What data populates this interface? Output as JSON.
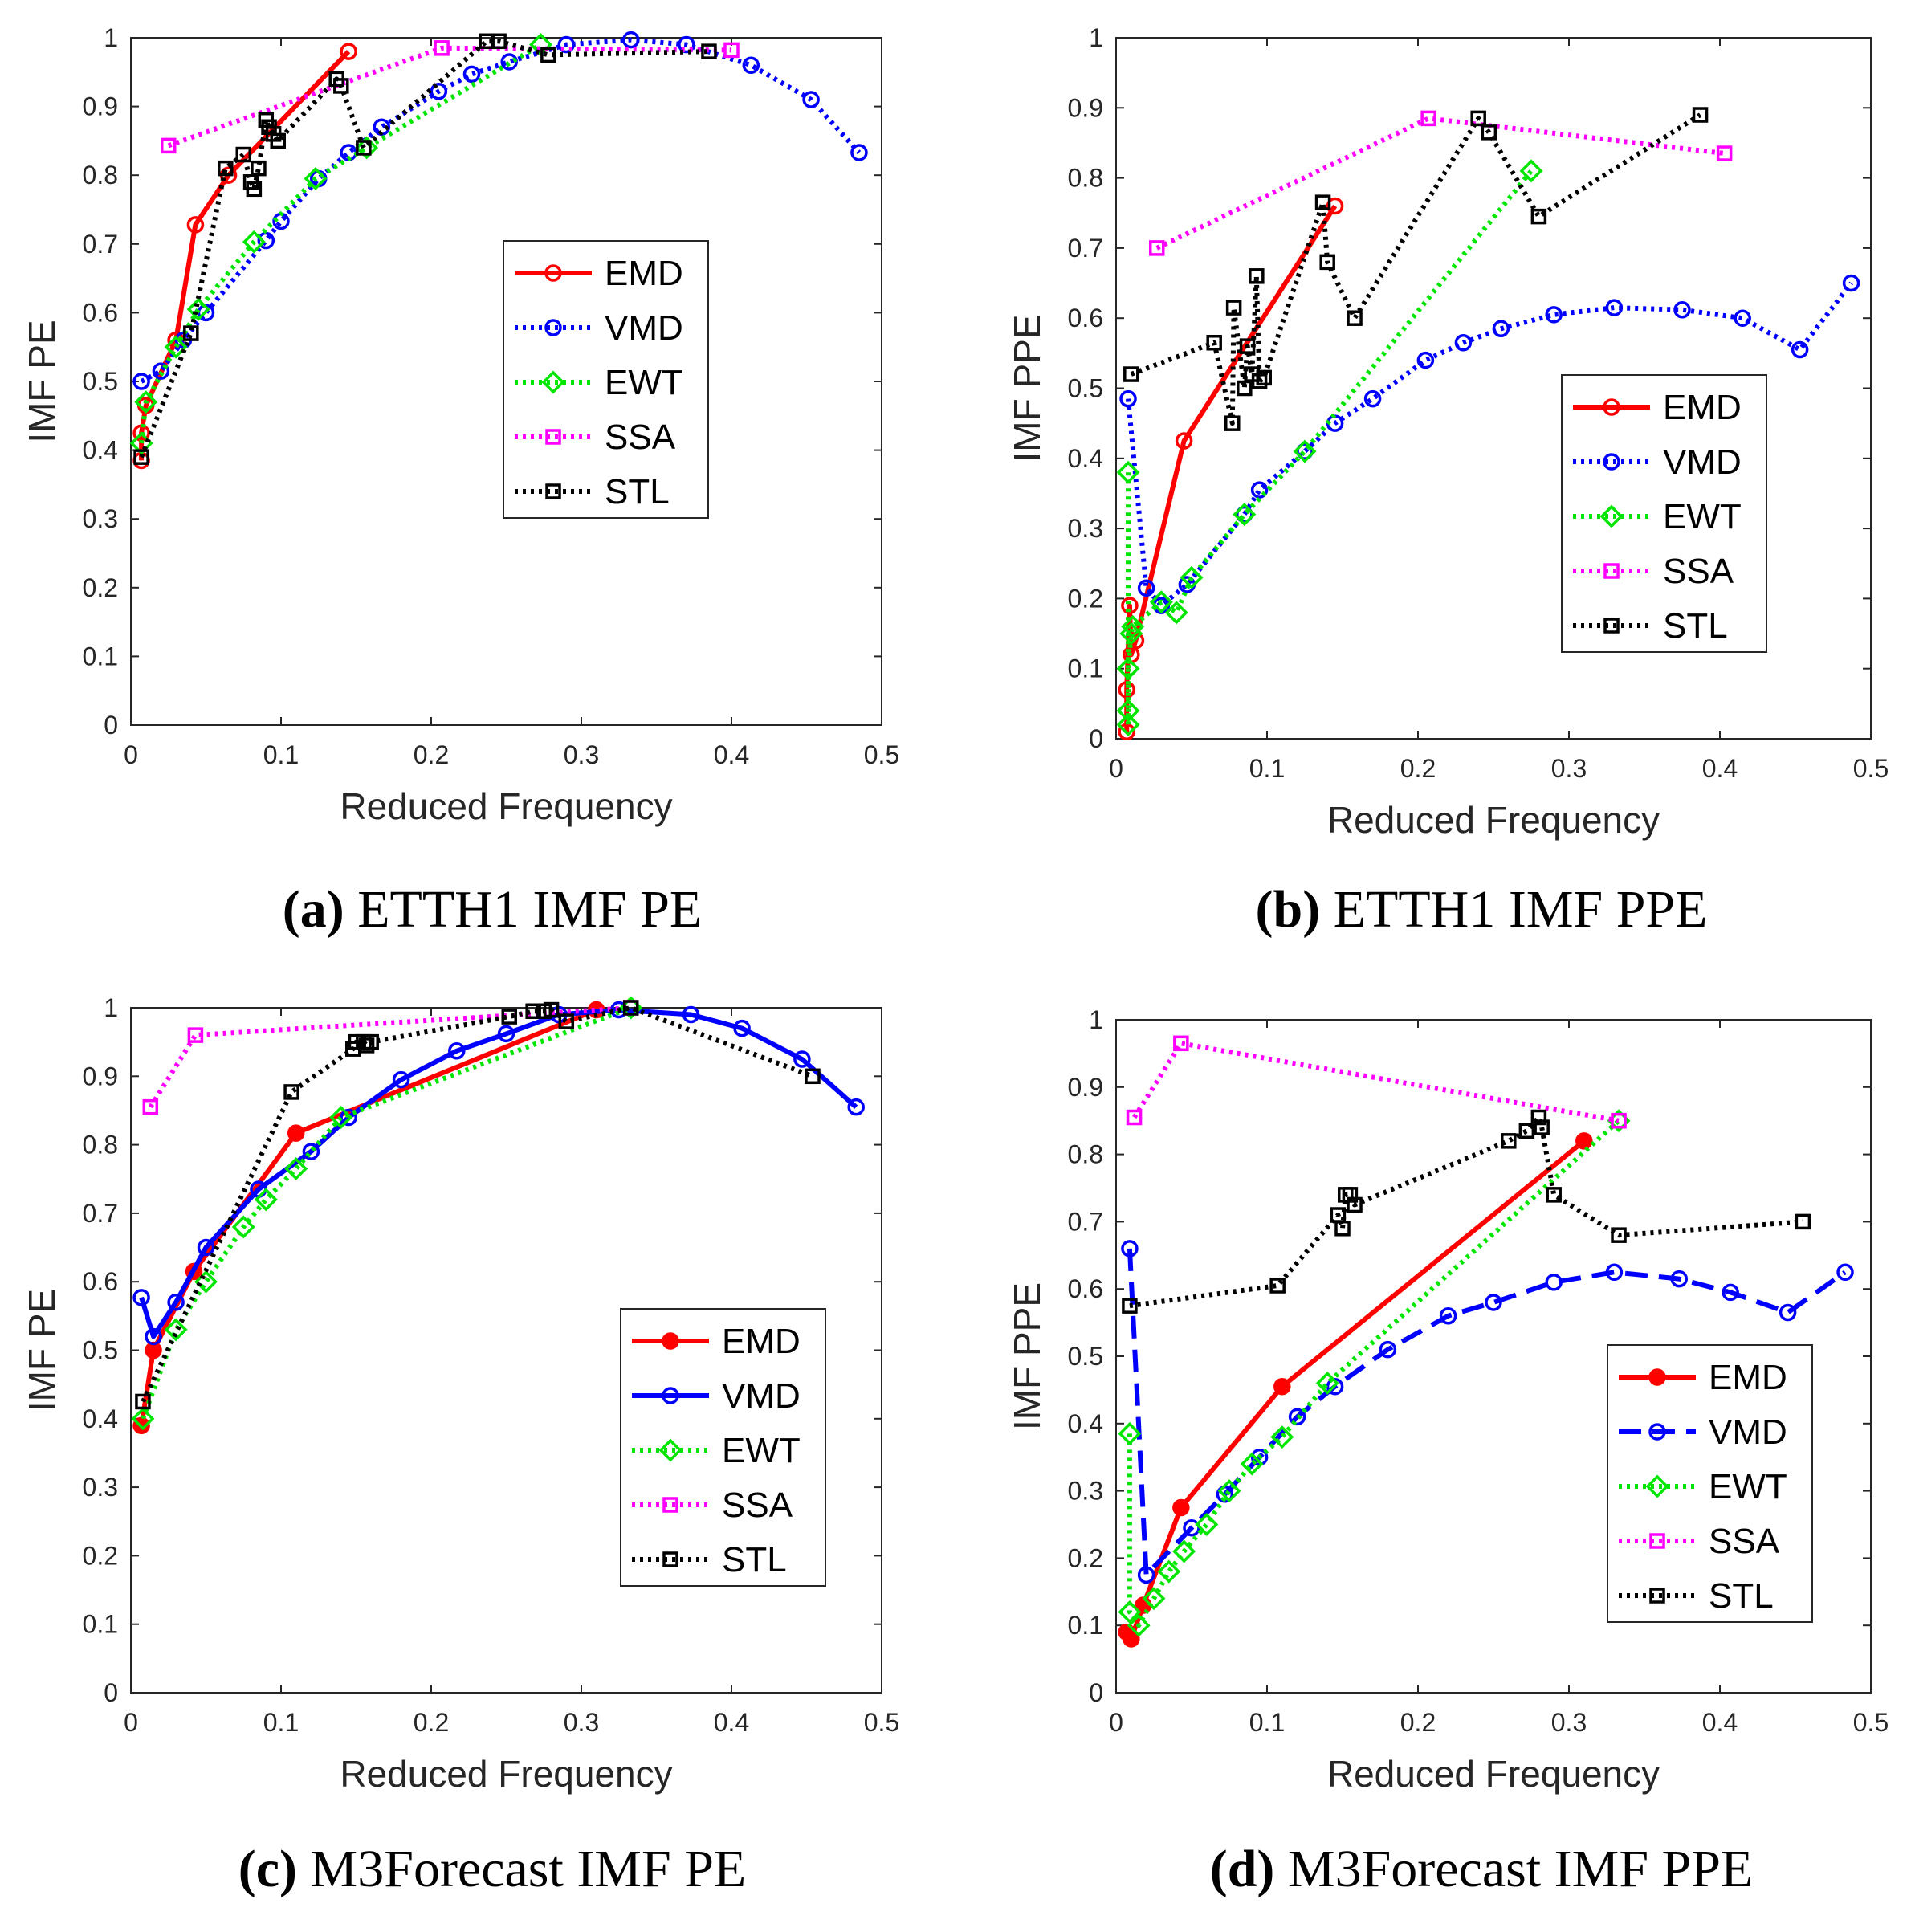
{
  "figure_captions": [
    {
      "letter": "(a)",
      "text": "ETTH1 IMF PE"
    },
    {
      "letter": "(b)",
      "text": "ETTH1 IMF PPE"
    },
    {
      "letter": "(c)",
      "text": "M3Forecast IMF PE"
    },
    {
      "letter": "(d)",
      "text": "M3Forecast IMF PPE"
    }
  ],
  "colors": {
    "EMD": "#ff0000",
    "VMD": "#0000ff",
    "EWT": "#00e600",
    "SSA": "#ff00ff",
    "STL": "#000000"
  },
  "chart_data": [
    {
      "type": "line",
      "title": "ETTH1 IMF PE",
      "xlabel": "Reduced Frequency",
      "ylabel": "IMF PE",
      "xlim": [
        0,
        0.5
      ],
      "ylim": [
        0,
        1
      ],
      "xticks": [
        "0",
        "0.1",
        "0.2",
        "0.3",
        "0.4",
        "0.5"
      ],
      "yticks": [
        "0",
        "0.1",
        "0.2",
        "0.3",
        "0.4",
        "0.5",
        "0.6",
        "0.7",
        "0.8",
        "0.9",
        "1"
      ],
      "grid": false,
      "legend": "right-center",
      "series": [
        {
          "name": "EMD",
          "style": "solid",
          "marker": "circle",
          "filled": false,
          "x": [
            0.007,
            0.007,
            0.01,
            0.03,
            0.043,
            0.065,
            0.145
          ],
          "y": [
            0.385,
            0.425,
            0.465,
            0.56,
            0.728,
            0.8,
            0.98
          ]
        },
        {
          "name": "VMD",
          "style": "dotted",
          "marker": "circle",
          "filled": false,
          "x": [
            0.007,
            0.02,
            0.035,
            0.05,
            0.09,
            0.1,
            0.125,
            0.145,
            0.167,
            0.205,
            0.227,
            0.252,
            0.29,
            0.333,
            0.37,
            0.413,
            0.453,
            0.485
          ],
          "y": [
            0.5,
            0.515,
            0.56,
            0.6,
            0.705,
            0.733,
            0.795,
            0.833,
            0.87,
            0.922,
            0.947,
            0.965,
            0.99,
            0.997,
            0.99,
            0.96,
            0.91,
            0.833
          ]
        },
        {
          "name": "EWT",
          "style": "dotted",
          "marker": "diamond",
          "filled": false,
          "x": [
            0.007,
            0.01,
            0.03,
            0.045,
            0.082,
            0.123,
            0.157,
            0.273
          ],
          "y": [
            0.41,
            0.47,
            0.55,
            0.605,
            0.703,
            0.795,
            0.84,
            0.99
          ]
        },
        {
          "name": "SSA",
          "style": "dotted",
          "marker": "square",
          "filled": false,
          "x": [
            0.025,
            0.207,
            0.4
          ],
          "y": [
            0.843,
            0.985,
            0.982
          ]
        },
        {
          "name": "STL",
          "style": "dotted",
          "marker": "square",
          "filled": false,
          "x": [
            0.007,
            0.04,
            0.063,
            0.075,
            0.08,
            0.082,
            0.085,
            0.09,
            0.092,
            0.095,
            0.098,
            0.137,
            0.14,
            0.155,
            0.237,
            0.245,
            0.278,
            0.385
          ],
          "y": [
            0.39,
            0.57,
            0.81,
            0.83,
            0.79,
            0.78,
            0.81,
            0.88,
            0.87,
            0.86,
            0.85,
            0.94,
            0.93,
            0.84,
            0.995,
            0.995,
            0.975,
            0.98
          ]
        }
      ]
    },
    {
      "type": "line",
      "title": "ETTH1 IMF PPE",
      "xlabel": "Reduced Frequency",
      "ylabel": "IMF PPE",
      "xlim": [
        0,
        0.5
      ],
      "ylim": [
        0,
        1
      ],
      "xticks": [
        "0",
        "0.1",
        "0.2",
        "0.3",
        "0.4",
        "0.5"
      ],
      "yticks": [
        "0",
        "0.1",
        "0.2",
        "0.3",
        "0.4",
        "0.5",
        "0.6",
        "0.7",
        "0.8",
        "0.9",
        "1"
      ],
      "grid": false,
      "legend": "right-center",
      "series": [
        {
          "name": "EMD",
          "style": "solid",
          "marker": "circle",
          "filled": false,
          "x": [
            0.007,
            0.007,
            0.009,
            0.01,
            0.013,
            0.045,
            0.145
          ],
          "y": [
            0.01,
            0.07,
            0.19,
            0.12,
            0.14,
            0.425,
            0.76
          ]
        },
        {
          "name": "VMD",
          "style": "dotted",
          "marker": "circle",
          "filled": false,
          "x": [
            0.008,
            0.02,
            0.03,
            0.047,
            0.085,
            0.095,
            0.125,
            0.145,
            0.17,
            0.205,
            0.23,
            0.255,
            0.29,
            0.33,
            0.375,
            0.415,
            0.453,
            0.487
          ],
          "y": [
            0.485,
            0.215,
            0.19,
            0.22,
            0.32,
            0.355,
            0.41,
            0.45,
            0.485,
            0.54,
            0.565,
            0.585,
            0.605,
            0.615,
            0.612,
            0.6,
            0.555,
            0.65
          ]
        },
        {
          "name": "EWT",
          "style": "dotted",
          "marker": "diamond",
          "filled": false,
          "x": [
            0.008,
            0.008,
            0.008,
            0.008,
            0.01,
            0.011,
            0.03,
            0.04,
            0.05,
            0.085,
            0.125,
            0.275
          ],
          "y": [
            0.38,
            0.02,
            0.04,
            0.1,
            0.15,
            0.16,
            0.195,
            0.18,
            0.23,
            0.32,
            0.41,
            0.81
          ]
        },
        {
          "name": "SSA",
          "style": "dotted",
          "marker": "square",
          "filled": false,
          "x": [
            0.027,
            0.207,
            0.403
          ],
          "y": [
            0.7,
            0.885,
            0.835
          ]
        },
        {
          "name": "STL",
          "style": "dotted",
          "marker": "square",
          "filled": false,
          "x": [
            0.01,
            0.065,
            0.077,
            0.078,
            0.085,
            0.087,
            0.09,
            0.093,
            0.095,
            0.098,
            0.137,
            0.14,
            0.158,
            0.24,
            0.247,
            0.28,
            0.387
          ],
          "y": [
            0.52,
            0.565,
            0.45,
            0.615,
            0.5,
            0.56,
            0.52,
            0.66,
            0.51,
            0.515,
            0.765,
            0.68,
            0.6,
            0.885,
            0.865,
            0.745,
            0.89
          ]
        }
      ]
    },
    {
      "type": "line",
      "title": "M3Forecast IMF PE",
      "xlabel": "Reduced Frequency",
      "ylabel": "IMF PE",
      "xlim": [
        0,
        0.5
      ],
      "ylim": [
        0,
        1
      ],
      "xticks": [
        "0",
        "0.1",
        "0.2",
        "0.3",
        "0.4",
        "0.5"
      ],
      "yticks": [
        "0",
        "0.1",
        "0.2",
        "0.3",
        "0.4",
        "0.5",
        "0.6",
        "0.7",
        "0.8",
        "0.9",
        "1"
      ],
      "grid": false,
      "legend": "bottom-right",
      "series": [
        {
          "name": "EMD",
          "style": "solid",
          "marker": "circle",
          "filled": true,
          "x": [
            0.007,
            0.015,
            0.042,
            0.11,
            0.31
          ],
          "y": [
            0.39,
            0.5,
            0.615,
            0.817,
            0.997
          ]
        },
        {
          "name": "VMD",
          "style": "solid",
          "marker": "circle",
          "filled": false,
          "x": [
            0.007,
            0.015,
            0.03,
            0.05,
            0.085,
            0.12,
            0.145,
            0.18,
            0.217,
            0.25,
            0.285,
            0.325,
            0.373,
            0.407,
            0.447,
            0.483
          ],
          "y": [
            0.577,
            0.52,
            0.57,
            0.65,
            0.735,
            0.79,
            0.84,
            0.895,
            0.937,
            0.962,
            0.99,
            0.997,
            0.99,
            0.97,
            0.925,
            0.855
          ]
        },
        {
          "name": "EWT",
          "style": "dotted",
          "marker": "diamond",
          "filled": false,
          "x": [
            0.008,
            0.03,
            0.05,
            0.075,
            0.09,
            0.11,
            0.14,
            0.333
          ],
          "y": [
            0.4,
            0.53,
            0.6,
            0.68,
            0.72,
            0.765,
            0.84,
            1.0
          ]
        },
        {
          "name": "SSA",
          "style": "dotted",
          "marker": "square",
          "filled": false,
          "x": [
            0.013,
            0.043,
            0.333
          ],
          "y": [
            0.855,
            0.96,
            1.0
          ]
        },
        {
          "name": "STL",
          "style": "dotted",
          "marker": "square",
          "filled": false,
          "x": [
            0.008,
            0.107,
            0.148,
            0.15,
            0.155,
            0.157,
            0.16,
            0.252,
            0.268,
            0.275,
            0.28,
            0.29,
            0.333,
            0.454
          ],
          "y": [
            0.425,
            0.877,
            0.94,
            0.95,
            0.95,
            0.945,
            0.95,
            0.987,
            0.995,
            0.995,
            0.997,
            0.98,
            1.0,
            0.9
          ]
        }
      ]
    },
    {
      "type": "line",
      "title": "M3Forecast IMF PPE",
      "xlabel": "Reduced Frequency",
      "ylabel": "IMF PPE",
      "xlim": [
        0,
        0.5
      ],
      "ylim": [
        0,
        1
      ],
      "xticks": [
        "0",
        "0.1",
        "0.2",
        "0.3",
        "0.4",
        "0.5"
      ],
      "yticks": [
        "0",
        "0.1",
        "0.2",
        "0.3",
        "0.4",
        "0.5",
        "0.6",
        "0.7",
        "0.8",
        "0.9",
        "1"
      ],
      "grid": false,
      "legend": "bottom-right",
      "series": [
        {
          "name": "EMD",
          "style": "solid",
          "marker": "circle",
          "filled": true,
          "x": [
            0.007,
            0.01,
            0.018,
            0.043,
            0.11,
            0.31
          ],
          "y": [
            0.09,
            0.08,
            0.13,
            0.275,
            0.455,
            0.82
          ]
        },
        {
          "name": "VMD",
          "style": "dashed",
          "marker": "circle",
          "filled": false,
          "x": [
            0.009,
            0.02,
            0.05,
            0.072,
            0.095,
            0.12,
            0.145,
            0.18,
            0.22,
            0.25,
            0.29,
            0.33,
            0.373,
            0.407,
            0.445,
            0.483
          ],
          "y": [
            0.66,
            0.175,
            0.245,
            0.295,
            0.35,
            0.41,
            0.455,
            0.51,
            0.56,
            0.58,
            0.61,
            0.625,
            0.615,
            0.595,
            0.565,
            0.625
          ]
        },
        {
          "name": "EWT",
          "style": "dotted",
          "marker": "diamond",
          "filled": false,
          "x": [
            0.009,
            0.009,
            0.015,
            0.025,
            0.035,
            0.045,
            0.06,
            0.075,
            0.09,
            0.11,
            0.14,
            0.333
          ],
          "y": [
            0.385,
            0.12,
            0.1,
            0.14,
            0.18,
            0.21,
            0.25,
            0.3,
            0.34,
            0.38,
            0.46,
            0.85
          ]
        },
        {
          "name": "SSA",
          "style": "dotted",
          "marker": "square",
          "filled": false,
          "x": [
            0.012,
            0.043,
            0.333
          ],
          "y": [
            0.855,
            0.965,
            0.85
          ]
        },
        {
          "name": "STL",
          "style": "dotted",
          "marker": "square",
          "filled": false,
          "x": [
            0.009,
            0.107,
            0.147,
            0.15,
            0.152,
            0.155,
            0.158,
            0.26,
            0.272,
            0.28,
            0.282,
            0.29,
            0.333,
            0.455
          ],
          "y": [
            0.575,
            0.605,
            0.71,
            0.69,
            0.74,
            0.74,
            0.725,
            0.82,
            0.835,
            0.855,
            0.84,
            0.74,
            0.68,
            0.7
          ]
        }
      ]
    }
  ]
}
